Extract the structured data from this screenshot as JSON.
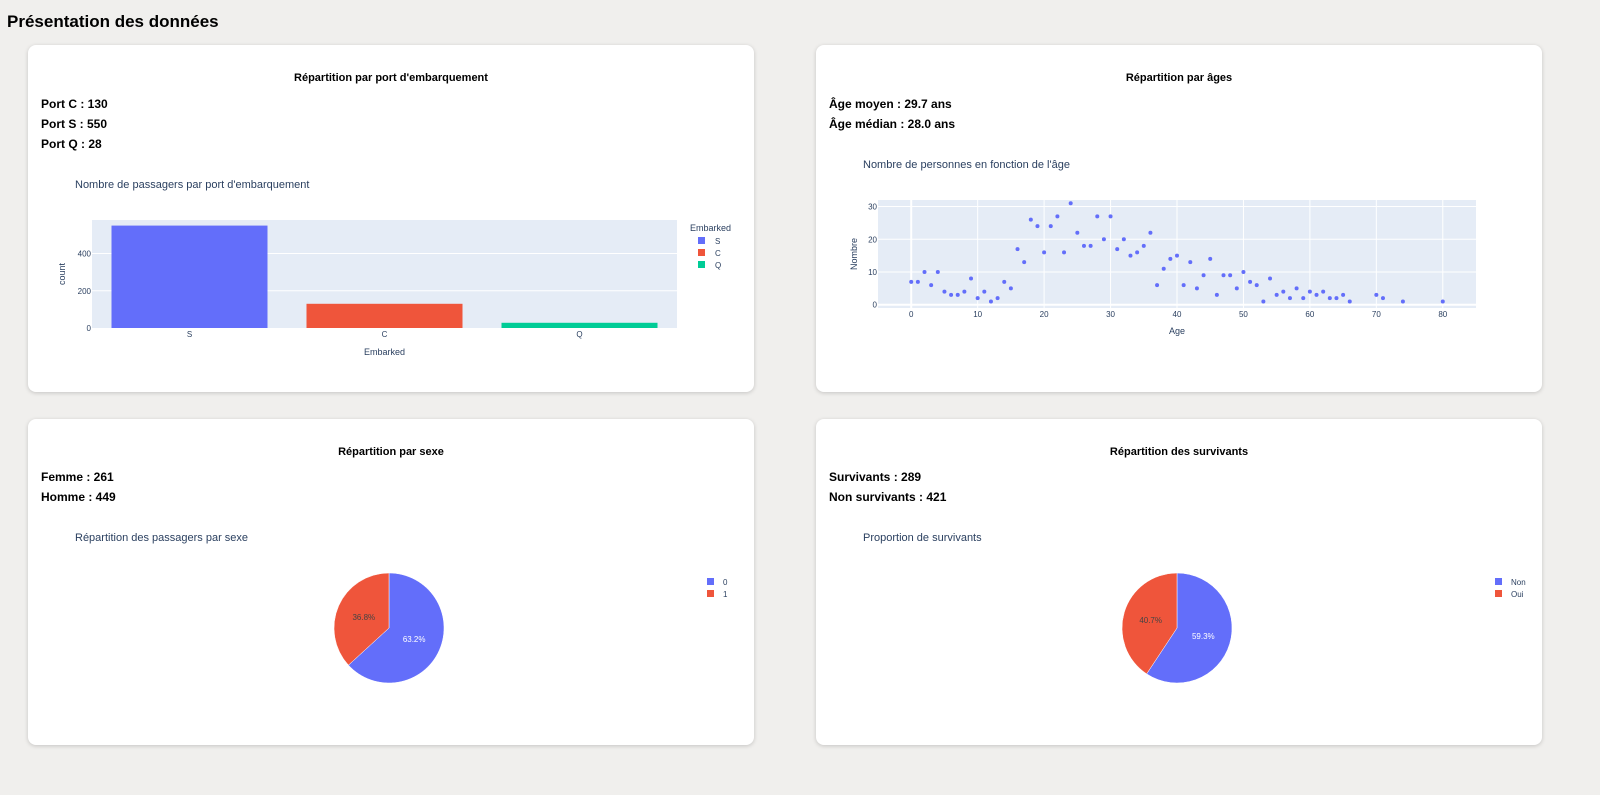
{
  "page": {
    "title": "Présentation des données"
  },
  "cards": {
    "embarked": {
      "title": "Répartition par port d'embarquement",
      "stats": [
        "Port C : 130",
        "Port S : 550",
        "Port Q : 28"
      ]
    },
    "age": {
      "title": "Répartition par âges",
      "stats": [
        "Âge moyen : 29.7 ans",
        "Âge médian : 28.0 ans"
      ]
    },
    "sex": {
      "title": "Répartition par sexe",
      "stats": [
        "Femme : 261",
        "Homme : 449"
      ]
    },
    "survival": {
      "title": "Répartition des survivants",
      "stats": [
        "Survivants : 289",
        "Non survivants : 421"
      ]
    }
  },
  "chart_data": [
    {
      "type": "bar",
      "title": "Nombre de passagers par port d'embarquement",
      "xlabel": "Embarked",
      "ylabel": "count",
      "categories": [
        "S",
        "C",
        "Q"
      ],
      "values": [
        550,
        130,
        28
      ],
      "colors": [
        "#636efa",
        "#ef553b",
        "#00cc96"
      ],
      "legend_title": "Embarked",
      "legend": [
        "S",
        "C",
        "Q"
      ],
      "yticks": [
        0,
        200,
        400
      ],
      "ylim": [
        0,
        580
      ],
      "legend_position": "right"
    },
    {
      "type": "scatter",
      "title": "Nombre de personnes en fonction de l'âge",
      "xlabel": "Age",
      "ylabel": "Nombre",
      "color": "#636efa",
      "xlim": [
        -5,
        85
      ],
      "ylim": [
        -1,
        32
      ],
      "xticks": [
        0,
        10,
        20,
        30,
        40,
        50,
        60,
        70,
        80
      ],
      "yticks": [
        0,
        10,
        20,
        30
      ],
      "x": [
        0,
        1,
        2,
        3,
        4,
        5,
        6,
        7,
        8,
        9,
        10,
        11,
        12,
        13,
        14,
        15,
        16,
        17,
        18,
        19,
        20,
        21,
        22,
        23,
        24,
        25,
        26,
        27,
        28,
        29,
        30,
        31,
        32,
        33,
        34,
        35,
        36,
        37,
        38,
        39,
        40,
        41,
        42,
        43,
        44,
        45,
        46,
        47,
        48,
        49,
        50,
        51,
        52,
        53,
        54,
        55,
        56,
        57,
        58,
        59,
        60,
        61,
        62,
        63,
        64,
        65,
        66,
        70,
        71,
        74,
        80
      ],
      "y": [
        7,
        7,
        10,
        6,
        10,
        4,
        3,
        3,
        4,
        8,
        2,
        4,
        1,
        2,
        7,
        5,
        17,
        13,
        26,
        24,
        16,
        24,
        27,
        16,
        31,
        22,
        18,
        18,
        27,
        20,
        27,
        17,
        20,
        15,
        16,
        18,
        22,
        6,
        11,
        14,
        15,
        6,
        13,
        5,
        9,
        14,
        3,
        9,
        9,
        5,
        10,
        7,
        6,
        1,
        8,
        3,
        4,
        2,
        5,
        2,
        4,
        3,
        4,
        2,
        2,
        3,
        1,
        3,
        2,
        1,
        1
      ]
    },
    {
      "type": "pie",
      "title": "Répartition des passagers par sexe",
      "labels": [
        "0",
        "1"
      ],
      "values": [
        63.2,
        36.8
      ],
      "value_labels": [
        "63.2%",
        "36.8%"
      ],
      "colors": [
        "#636efa",
        "#ef553b"
      ],
      "legend_position": "top-right"
    },
    {
      "type": "pie",
      "title": "Proportion de survivants",
      "labels": [
        "Non",
        "Oui"
      ],
      "values": [
        59.3,
        40.7
      ],
      "value_labels": [
        "59.3%",
        "40.7%"
      ],
      "colors": [
        "#636efa",
        "#ef553b"
      ],
      "legend_position": "top-right"
    }
  ]
}
